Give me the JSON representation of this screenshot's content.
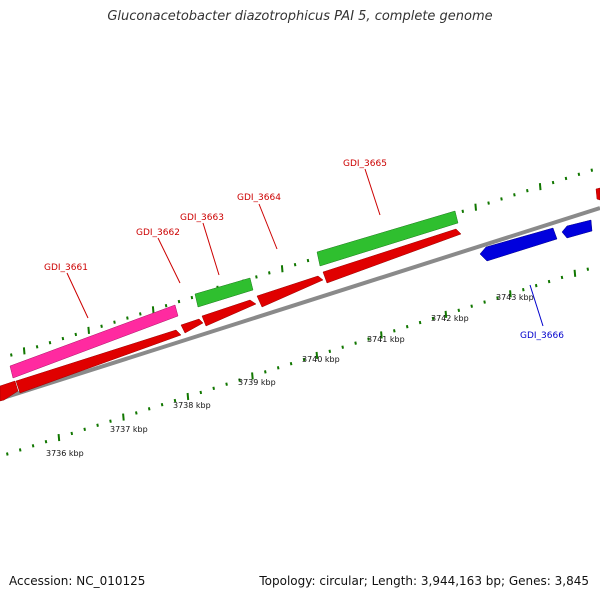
{
  "title": "Gluconacetobacter diazotrophicus PAI 5, complete genome",
  "footer": {
    "accession": "Accession: NC_010125",
    "summary": "Topology: circular; Length: 3,944,163 bp; Genes: 3,845"
  },
  "colors": {
    "forward": "#e00000",
    "reverse_highlight": "#ff2aa0",
    "green": "#2fbf2f",
    "blue": "#0000dd",
    "ticks": "#117700",
    "backbone": "#8a8a8a",
    "label_red": "#cc0000",
    "label_blue": "#0000cc"
  },
  "scale_labels": [
    "3736 kbp",
    "3737 kbp",
    "3738 kbp",
    "3739 kbp",
    "3740 kbp",
    "3741 kbp",
    "3742 kbp",
    "3743 kbp"
  ],
  "gene_labels": [
    {
      "name": "GDI_3661",
      "color": "red"
    },
    {
      "name": "GDI_3662",
      "color": "red"
    },
    {
      "name": "GDI_3663",
      "color": "red"
    },
    {
      "name": "GDI_3664",
      "color": "red"
    },
    {
      "name": "GDI_3665",
      "color": "red"
    },
    {
      "name": "GDI_3666",
      "color": "blue"
    }
  ]
}
